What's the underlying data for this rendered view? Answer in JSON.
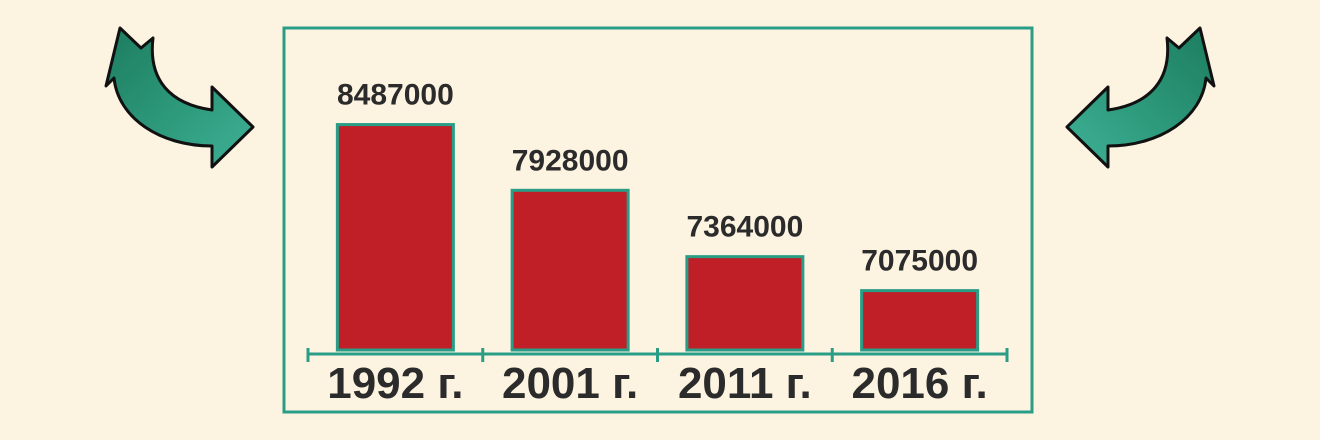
{
  "chart_data": {
    "type": "bar",
    "categories": [
      "1992 г.",
      "2001 г.",
      "2011 г.",
      "2016 г."
    ],
    "values": [
      8487000,
      7928000,
      7364000,
      7075000
    ],
    "value_labels": [
      "8487000",
      "7928000",
      "7364000",
      "7075000"
    ],
    "ylim": [
      6570000,
      8730000
    ],
    "grid": false,
    "legend": "none"
  },
  "colors": {
    "background": "#fdf3e1",
    "frame": "#2a9d86",
    "bar_fill": "#c01f27",
    "bar_outline": "#2a9d86",
    "arrow_fill_light": "#35a68c",
    "arrow_fill_dark": "#1d7c5e",
    "arrow_outline": "#111111",
    "text": "#2b2b2b"
  },
  "decorations": {
    "left_arrow_icon": "curved-arrow-right-icon",
    "right_arrow_icon": "curved-arrow-left-icon"
  }
}
